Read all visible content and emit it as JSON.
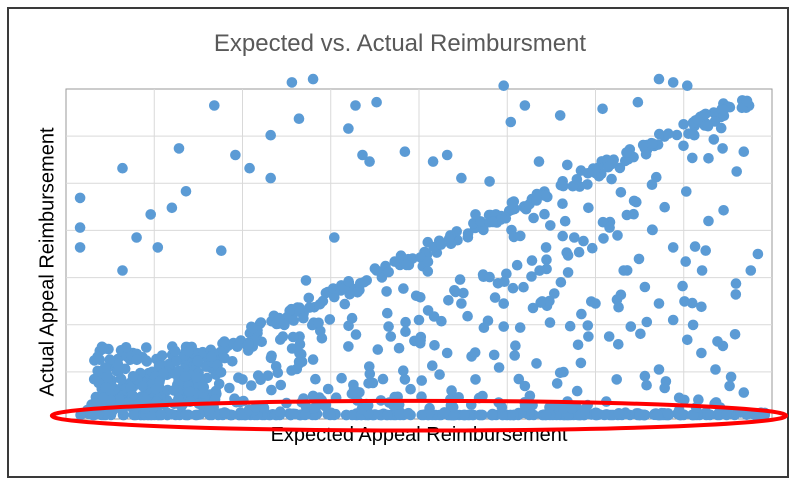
{
  "chart_data": {
    "type": "scatter",
    "title": "Expected vs. Actual Reimbursment",
    "xlabel": "Expected Appeal Reimbursement",
    "ylabel": "Actual Appeal Reimbursement",
    "xlim": [
      0,
      100
    ],
    "ylim": [
      0,
      100
    ],
    "tick_labels_shown": false,
    "grid": true,
    "point_color": "#5B9BD5",
    "annotation": {
      "type": "ellipse",
      "color": "#FF0000",
      "description": "highlights points with zero actual reimbursement",
      "cx": 50,
      "cy": 1,
      "rx": 52,
      "ry": 4.5
    },
    "clusters": [
      {
        "name": "diagonal",
        "kind": "diagonal",
        "n": 240,
        "x_range": [
          3,
          97
        ],
        "spread": 2
      },
      {
        "name": "dense_low_corner",
        "kind": "box",
        "n": 170,
        "x_range": [
          4,
          22
        ],
        "y_range": [
          3,
          22
        ]
      },
      {
        "name": "below_diagonal",
        "kind": "below_diag",
        "n": 260,
        "x_range": [
          5,
          95
        ]
      },
      {
        "name": "zero_actual",
        "kind": "box",
        "n": 320,
        "x_range": [
          2,
          99
        ],
        "y_range": [
          0,
          2
        ]
      },
      {
        "name": "near_zero",
        "kind": "box",
        "n": 60,
        "x_range": [
          4,
          97
        ],
        "y_range": [
          2,
          7
        ]
      }
    ],
    "points": [
      [
        2,
        67
      ],
      [
        2,
        58
      ],
      [
        2,
        52
      ],
      [
        8,
        76
      ],
      [
        8,
        45
      ],
      [
        10,
        55
      ],
      [
        12,
        62
      ],
      [
        13,
        52
      ],
      [
        15,
        64
      ],
      [
        17,
        69
      ],
      [
        21,
        95
      ],
      [
        22,
        51
      ],
      [
        16,
        82
      ],
      [
        24,
        80
      ],
      [
        26,
        76
      ],
      [
        29,
        73
      ],
      [
        33,
        91
      ],
      [
        32,
        102
      ],
      [
        35,
        103
      ],
      [
        29,
        86
      ],
      [
        40,
        88
      ],
      [
        41,
        95
      ],
      [
        42,
        80
      ],
      [
        43,
        78
      ],
      [
        44,
        96
      ],
      [
        48,
        81
      ],
      [
        52,
        78
      ],
      [
        54,
        80
      ],
      [
        56,
        73
      ],
      [
        58,
        62
      ],
      [
        60,
        72
      ],
      [
        63,
        90
      ],
      [
        65,
        95
      ],
      [
        67,
        78
      ],
      [
        70,
        92
      ],
      [
        71,
        77
      ],
      [
        62,
        101
      ],
      [
        76,
        94
      ],
      [
        81,
        96
      ],
      [
        84,
        103
      ],
      [
        86,
        102
      ],
      [
        88,
        101
      ],
      [
        89,
        86
      ],
      [
        91,
        79
      ],
      [
        93,
        82
      ],
      [
        95,
        75
      ],
      [
        96,
        81
      ],
      [
        97,
        45
      ],
      [
        98,
        50
      ],
      [
        83,
        71
      ],
      [
        74,
        64
      ],
      [
        77,
        58
      ],
      [
        79,
        45
      ],
      [
        82,
        40
      ],
      [
        84,
        35
      ],
      [
        86,
        30
      ],
      [
        88,
        24
      ],
      [
        90,
        20
      ],
      [
        92,
        15
      ],
      [
        94,
        10
      ],
      [
        96,
        8
      ],
      [
        72,
        55
      ],
      [
        68,
        52
      ],
      [
        75,
        35
      ],
      [
        80,
        28
      ],
      [
        90,
        34
      ],
      [
        86,
        52
      ],
      [
        91,
        60
      ],
      [
        66,
        48
      ],
      [
        60,
        43
      ],
      [
        56,
        35
      ],
      [
        50,
        30
      ],
      [
        46,
        25
      ],
      [
        54,
        20
      ],
      [
        40,
        22
      ],
      [
        35,
        18
      ],
      [
        30,
        14
      ],
      [
        25,
        12
      ],
      [
        58,
        12
      ],
      [
        65,
        10
      ],
      [
        70,
        14
      ],
      [
        78,
        12
      ],
      [
        82,
        13
      ],
      [
        84,
        15
      ],
      [
        74,
        25
      ],
      [
        62,
        28
      ],
      [
        48,
        12
      ],
      [
        44,
        45
      ],
      [
        38,
        55
      ],
      [
        34,
        42
      ]
    ]
  }
}
